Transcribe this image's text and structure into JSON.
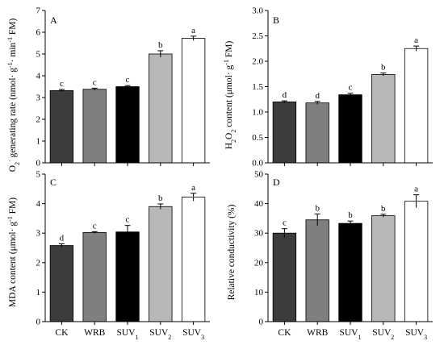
{
  "figure": {
    "categories": [
      "CK",
      "WRB",
      "SUV1",
      "SUV2",
      "SUV3"
    ],
    "category_labels": [
      {
        "main": "CK",
        "sub": ""
      },
      {
        "main": "WRB",
        "sub": ""
      },
      {
        "main": "SUV",
        "sub": "1"
      },
      {
        "main": "SUV",
        "sub": "2"
      },
      {
        "main": "SUV",
        "sub": "3"
      }
    ],
    "bar_colors": [
      "#3c3c3c",
      "#7f7f7f",
      "#000000",
      "#b8b8b8",
      "#ffffff"
    ]
  },
  "chart_data": [
    {
      "type": "bar",
      "panel": "A",
      "ylabel": "O2·− generating rate (nmol· g−1· min−1 FM)",
      "ylabel_parts": {
        "a": "O",
        "b": "2",
        "c": "·",
        "d": " generating rate (nmol· g",
        "e": "-1",
        "f": "· min",
        "g": "-1",
        "h": " FM)"
      },
      "ylim": [
        0,
        7
      ],
      "yticks": [
        "0",
        "1",
        "2",
        "3",
        "4",
        "5",
        "6",
        "7"
      ],
      "categories": [
        "CK",
        "WRB",
        "SUV1",
        "SUV2",
        "SUV3"
      ],
      "values": [
        3.32,
        3.38,
        3.5,
        5.0,
        5.72
      ],
      "errors": [
        0.05,
        0.05,
        0.05,
        0.15,
        0.1
      ],
      "significance": [
        "c",
        "c",
        "c",
        "b",
        "a"
      ]
    },
    {
      "type": "bar",
      "panel": "B",
      "ylabel": "H2O2 content (μmol· g−1 FM)",
      "ylabel_parts": {
        "a": "H",
        "b": "2",
        "c": "O",
        "d": "2",
        "e": " content (μmol· g",
        "f": "-1",
        "g": " FM)"
      },
      "ylim": [
        0,
        3.0
      ],
      "yticks": [
        "0.0",
        "0.5",
        "1.0",
        "1.5",
        "2.0",
        "2.5",
        "3.0"
      ],
      "categories": [
        "CK",
        "WRB",
        "SUV1",
        "SUV2",
        "SUV3"
      ],
      "values": [
        1.2,
        1.18,
        1.34,
        1.74,
        2.25
      ],
      "errors": [
        0.02,
        0.03,
        0.03,
        0.03,
        0.05
      ],
      "significance": [
        "d",
        "d",
        "c",
        "b",
        "a"
      ]
    },
    {
      "type": "bar",
      "panel": "C",
      "ylabel": "MDA content (μmol· g−1 FM)",
      "ylabel_parts": {
        "a": "MDA content (μmol· g",
        "b": "-1",
        "c": " FM)"
      },
      "ylim": [
        0,
        5
      ],
      "yticks": [
        "0",
        "1",
        "2",
        "3",
        "4",
        "5"
      ],
      "categories": [
        "CK",
        "WRB",
        "SUV1",
        "SUV2",
        "SUV3"
      ],
      "values": [
        2.58,
        3.02,
        3.04,
        3.9,
        4.22
      ],
      "errors": [
        0.06,
        0.03,
        0.22,
        0.09,
        0.13
      ],
      "significance": [
        "d",
        "c",
        "c",
        "b",
        "a"
      ]
    },
    {
      "type": "bar",
      "panel": "D",
      "ylabel": "Relative conductivity (%)",
      "ylim": [
        0,
        50
      ],
      "yticks": [
        "0",
        "10",
        "20",
        "30",
        "40",
        "50"
      ],
      "categories": [
        "CK",
        "WRB",
        "SUV1",
        "SUV2",
        "SUV3"
      ],
      "values": [
        30.0,
        34.5,
        33.3,
        35.9,
        40.8
      ],
      "errors": [
        1.5,
        2.0,
        0.8,
        0.5,
        2.2
      ],
      "significance": [
        "c",
        "b",
        "b",
        "b",
        "a"
      ]
    }
  ]
}
